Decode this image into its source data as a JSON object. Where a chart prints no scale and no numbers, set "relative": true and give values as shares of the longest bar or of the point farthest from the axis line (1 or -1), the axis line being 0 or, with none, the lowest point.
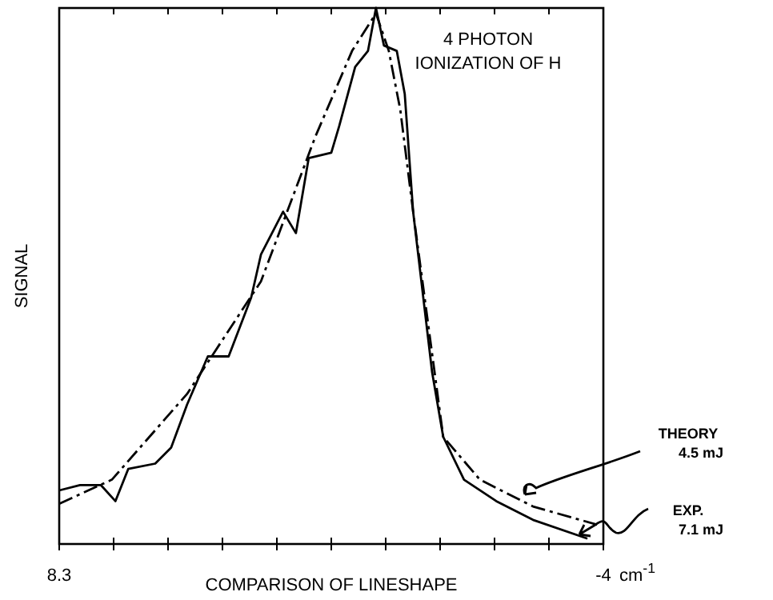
{
  "chart_data": {
    "type": "line",
    "title": "4 PHOTON\nIONIZATION OF H",
    "xlabel": "COMPARISON OF LINESHAPE",
    "ylabel": "SIGNAL",
    "relative": true,
    "xlim": [
      8.3,
      -4
    ],
    "xticks": [
      {
        "value": 8.3,
        "label": "8.3"
      },
      {
        "value": 7.07,
        "label": null
      },
      {
        "value": 5.84,
        "label": null
      },
      {
        "value": 4.61,
        "label": null
      },
      {
        "value": 3.38,
        "label": null
      },
      {
        "value": 2.15,
        "label": null
      },
      {
        "value": 0.92,
        "label": null
      },
      {
        "value": -0.31,
        "label": null
      },
      {
        "value": -1.54,
        "label": null
      },
      {
        "value": -2.77,
        "label": null
      },
      -4
    ],
    "annotations": [
      "cm$^{-1}$"
    ],
    "series": [
      {
        "name": "THEORY 4.5 mJ",
        "color": "#000000",
        "line_style": "dashed",
        "x": [
          8.3,
          7.11,
          5.41,
          3.74,
          2.51,
          1.68,
          1.14,
          0.85,
          0.59,
          0.3,
          -0.38,
          -1.21,
          -2.41,
          -3.86
        ],
        "values": [
          0.075,
          0.12,
          0.28,
          0.49,
          0.76,
          0.92,
          0.99,
          0.92,
          0.81,
          0.62,
          0.2,
          0.12,
          0.07,
          0.036
        ]
      },
      {
        "name": "EXP. 7.1 mJ",
        "color": "#000000",
        "line_style": "solid",
        "x": [
          8.3,
          7.83,
          7.36,
          7.03,
          6.74,
          6.13,
          5.77,
          5.41,
          4.94,
          4.47,
          3.96,
          3.74,
          3.24,
          2.95,
          2.66,
          2.15,
          1.97,
          1.61,
          1.32,
          1.14,
          0.96,
          0.67,
          0.49,
          0.3,
          -0.13,
          -0.38,
          -0.85,
          -1.58,
          -2.41,
          -3.64
        ],
        "values": [
          0.1,
          0.11,
          0.11,
          0.08,
          0.14,
          0.15,
          0.18,
          0.26,
          0.35,
          0.35,
          0.46,
          0.54,
          0.62,
          0.58,
          0.72,
          0.73,
          0.78,
          0.89,
          0.92,
          1,
          0.93,
          0.92,
          0.84,
          0.62,
          0.32,
          0.2,
          0.12,
          0.08,
          0.045,
          0.01
        ]
      }
    ]
  }
}
